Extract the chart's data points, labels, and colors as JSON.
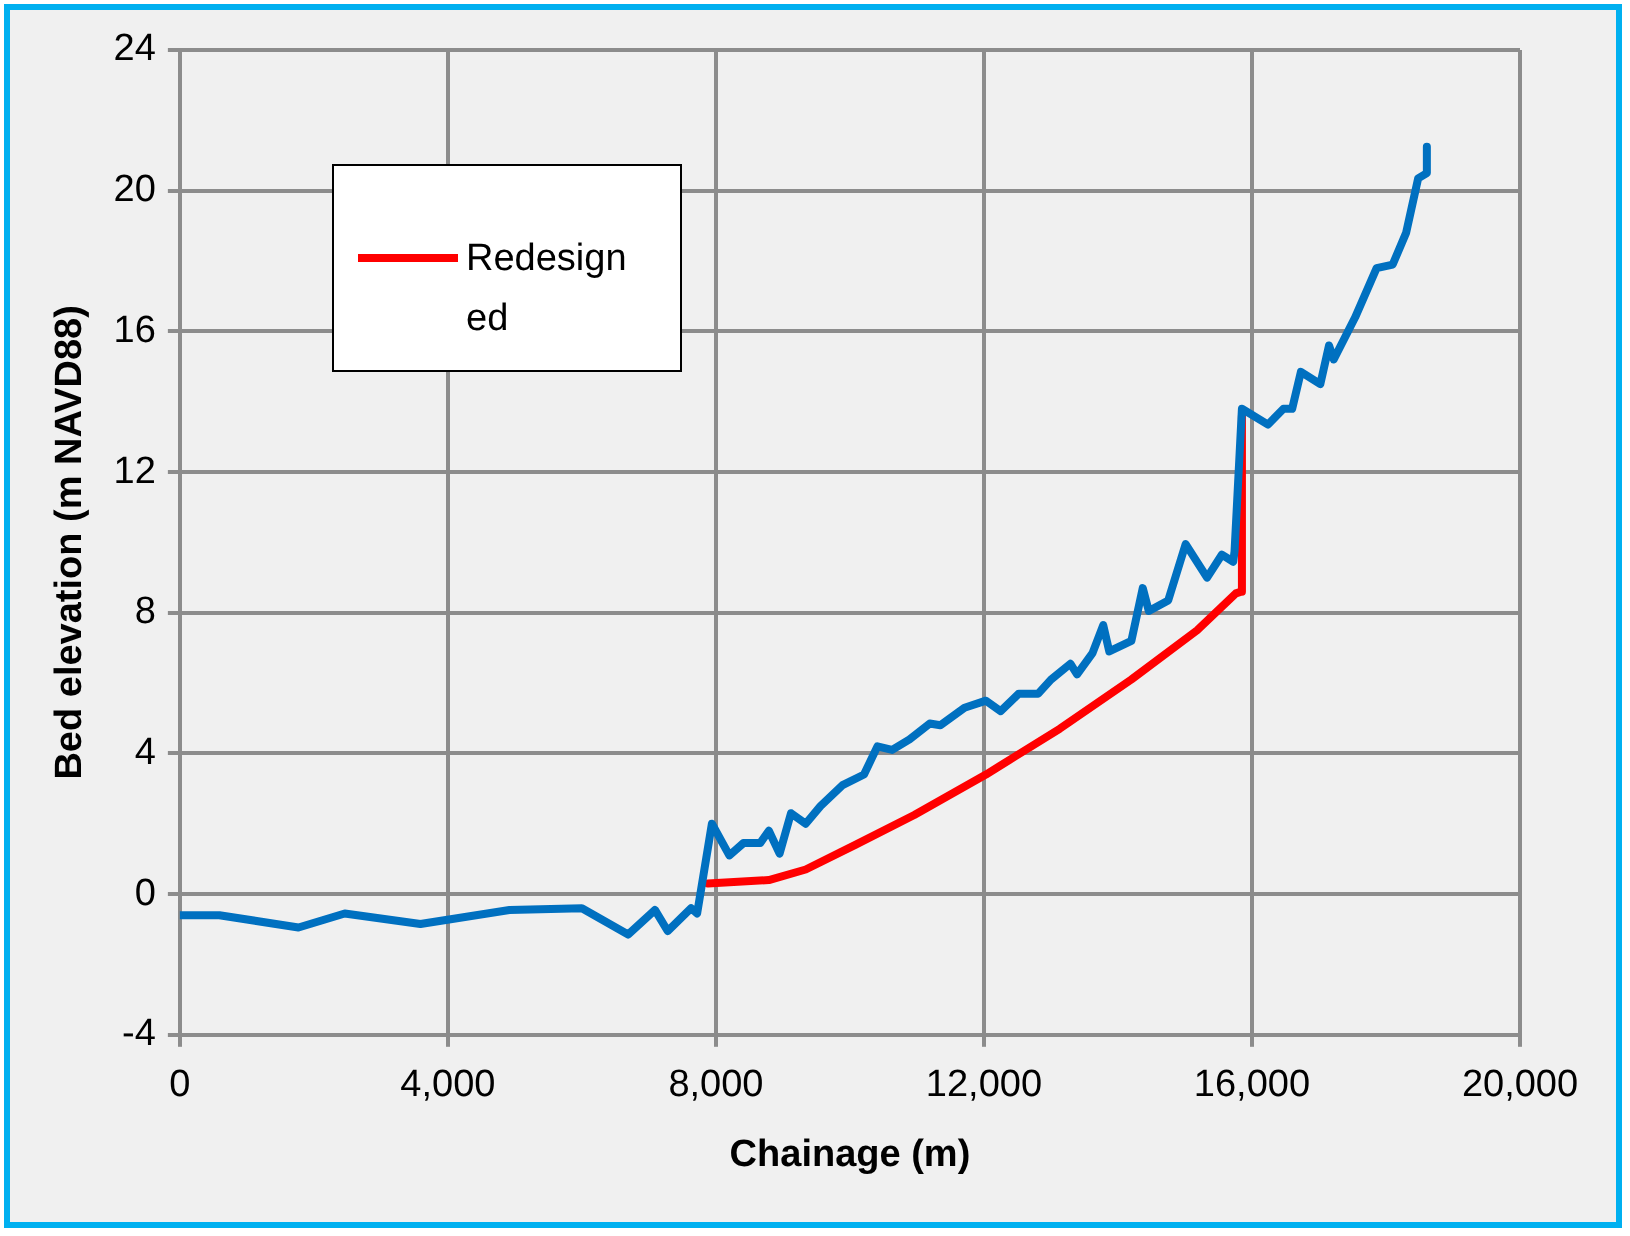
{
  "chart_data": {
    "type": "line",
    "xlabel": "Chainage (m)",
    "ylabel": "Bed elevation (m NAVD88)",
    "xlim": [
      0,
      20000
    ],
    "xticks": [
      {
        "value": 0,
        "label": "0"
      },
      {
        "value": 4000,
        "label": "4,000"
      },
      {
        "value": 8000,
        "label": "8,000"
      },
      {
        "value": 12000,
        "label": "12,000"
      },
      {
        "value": 16000,
        "label": "16,000"
      },
      {
        "value": 20000,
        "label": "20,000"
      }
    ],
    "ylim": [
      -4,
      24
    ],
    "yticks": [
      -4,
      0,
      4,
      8,
      12,
      16,
      20,
      24
    ],
    "grid": true,
    "legend": "top left",
    "marker": "none",
    "line_style": "solid",
    "series": [
      {
        "color": "#0070c0",
        "x": [
          0,
          590,
          1770,
          2460,
          3590,
          4920,
          6000,
          6690,
          7090,
          7280,
          7630,
          7720,
          7940,
          8200,
          8410,
          8660,
          8790,
          8950,
          9120,
          9340,
          9560,
          9890,
          10210,
          10410,
          10630,
          10890,
          11190,
          11350,
          11710,
          12030,
          12250,
          12520,
          12810,
          13000,
          13290,
          13390,
          13620,
          13780,
          13870,
          14200,
          14370,
          14460,
          14750,
          15010,
          15330,
          15550,
          15720,
          15740,
          15850,
          16240,
          16470,
          16600,
          16730,
          17020,
          17150,
          17220,
          17540,
          17860,
          18100,
          18300,
          18480,
          18610,
          18610
        ],
        "values": [
          -0.6,
          -0.6,
          -0.95,
          -0.55,
          -0.85,
          -0.45,
          -0.4,
          -1.15,
          -0.45,
          -1.05,
          -0.4,
          -0.55,
          2.0,
          1.1,
          1.45,
          1.45,
          1.8,
          1.15,
          2.3,
          2.0,
          2.5,
          3.1,
          3.4,
          4.2,
          4.1,
          4.4,
          4.85,
          4.8,
          5.3,
          5.5,
          5.2,
          5.7,
          5.7,
          6.1,
          6.55,
          6.25,
          6.85,
          7.65,
          6.9,
          7.2,
          8.7,
          8.05,
          8.35,
          9.95,
          9.0,
          9.65,
          9.45,
          9.75,
          13.8,
          13.35,
          13.8,
          13.8,
          14.85,
          14.5,
          15.6,
          15.2,
          16.4,
          17.8,
          17.9,
          18.8,
          20.35,
          20.5,
          21.25
        ]
      },
      {
        "name": "Redesigned",
        "color": "#ff0000",
        "x": [
          7880,
          8790,
          9340,
          10080,
          10960,
          12030,
          13130,
          14200,
          15180,
          15760,
          15840,
          15850
        ],
        "values": [
          0.3,
          0.4,
          0.7,
          1.4,
          2.25,
          3.4,
          4.7,
          6.1,
          7.5,
          8.55,
          8.6,
          13.6
        ]
      }
    ]
  }
}
